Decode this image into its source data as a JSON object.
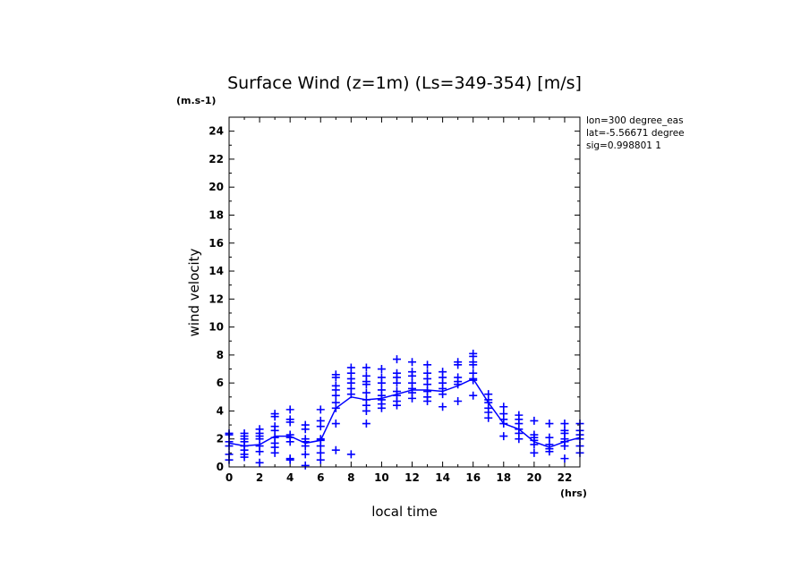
{
  "chart_data": {
    "type": "scatter",
    "title": "Surface Wind (z=1m) (Ls=349-354) [m/s]",
    "y_unit": "(m.s-1)",
    "x_unit": "(hrs)",
    "xlabel": "local time",
    "ylabel": "wind velocity",
    "xlim": [
      0,
      23
    ],
    "ylim": [
      0,
      25
    ],
    "x_ticks": [
      "0",
      "2",
      "4",
      "6",
      "8",
      "10",
      "12",
      "14",
      "16",
      "18",
      "20",
      "22"
    ],
    "y_ticks": [
      "0",
      "2",
      "4",
      "6",
      "8",
      "10",
      "12",
      "14",
      "16",
      "18",
      "20",
      "22",
      "24"
    ],
    "info_lines": [
      "lon=300 degree_eas",
      "lat=-5.56671 degree",
      "sig=0.998801 1"
    ],
    "color": "#0000ff",
    "grid": false,
    "series": [
      {
        "type": "scatter",
        "points": [
          [
            0,
            2.4
          ],
          [
            0,
            2.3
          ],
          [
            0,
            1.8
          ],
          [
            0,
            1.5
          ],
          [
            0,
            0.9
          ],
          [
            0,
            0.5
          ],
          [
            1,
            2.4
          ],
          [
            1,
            2.2
          ],
          [
            1,
            2.0
          ],
          [
            1,
            1.8
          ],
          [
            1,
            1.5
          ],
          [
            1,
            1.2
          ],
          [
            1,
            0.9
          ],
          [
            1,
            0.7
          ],
          [
            2,
            2.7
          ],
          [
            2,
            2.4
          ],
          [
            2,
            2.2
          ],
          [
            2,
            2.0
          ],
          [
            2,
            1.5
          ],
          [
            2,
            1.1
          ],
          [
            2,
            0.3
          ],
          [
            3,
            3.8
          ],
          [
            3,
            3.6
          ],
          [
            3,
            2.9
          ],
          [
            3,
            2.6
          ],
          [
            3,
            2.1
          ],
          [
            3,
            1.7
          ],
          [
            3,
            1.4
          ],
          [
            3,
            1.0
          ],
          [
            4,
            4.1
          ],
          [
            4,
            3.4
          ],
          [
            4,
            3.2
          ],
          [
            4,
            2.3
          ],
          [
            4,
            2.1
          ],
          [
            4,
            1.8
          ],
          [
            4,
            0.6
          ],
          [
            4,
            0.5
          ],
          [
            5,
            3.0
          ],
          [
            5,
            2.7
          ],
          [
            5,
            2.0
          ],
          [
            5,
            1.8
          ],
          [
            5,
            1.5
          ],
          [
            5,
            0.9
          ],
          [
            5,
            0.1
          ],
          [
            6,
            4.1
          ],
          [
            6,
            3.3
          ],
          [
            6,
            2.9
          ],
          [
            6,
            2.0
          ],
          [
            6,
            1.9
          ],
          [
            6,
            1.5
          ],
          [
            6,
            1.0
          ],
          [
            6,
            0.5
          ],
          [
            7,
            6.6
          ],
          [
            7,
            6.4
          ],
          [
            7,
            5.8
          ],
          [
            7,
            5.5
          ],
          [
            7,
            5.1
          ],
          [
            7,
            4.6
          ],
          [
            7,
            4.2
          ],
          [
            7,
            3.1
          ],
          [
            7,
            1.2
          ],
          [
            8,
            7.1
          ],
          [
            8,
            6.7
          ],
          [
            8,
            6.3
          ],
          [
            8,
            6.0
          ],
          [
            8,
            5.6
          ],
          [
            8,
            5.2
          ],
          [
            8,
            0.9
          ],
          [
            9,
            7.1
          ],
          [
            9,
            6.5
          ],
          [
            9,
            6.1
          ],
          [
            9,
            5.9
          ],
          [
            9,
            5.3
          ],
          [
            9,
            4.8
          ],
          [
            9,
            4.4
          ],
          [
            9,
            4.0
          ],
          [
            9,
            3.1
          ],
          [
            10,
            7.0
          ],
          [
            10,
            6.4
          ],
          [
            10,
            6.0
          ],
          [
            10,
            5.5
          ],
          [
            10,
            5.1
          ],
          [
            10,
            4.8
          ],
          [
            10,
            4.5
          ],
          [
            10,
            4.2
          ],
          [
            11,
            7.7
          ],
          [
            11,
            6.7
          ],
          [
            11,
            6.4
          ],
          [
            11,
            6.0
          ],
          [
            11,
            5.4
          ],
          [
            11,
            5.1
          ],
          [
            11,
            4.7
          ],
          [
            11,
            4.4
          ],
          [
            12,
            7.5
          ],
          [
            12,
            6.8
          ],
          [
            12,
            6.5
          ],
          [
            12,
            6.0
          ],
          [
            12,
            5.6
          ],
          [
            12,
            5.3
          ],
          [
            12,
            4.9
          ],
          [
            13,
            7.3
          ],
          [
            13,
            6.7
          ],
          [
            13,
            6.3
          ],
          [
            13,
            5.9
          ],
          [
            13,
            5.4
          ],
          [
            13,
            5.0
          ],
          [
            13,
            4.7
          ],
          [
            14,
            6.8
          ],
          [
            14,
            6.4
          ],
          [
            14,
            6.0
          ],
          [
            14,
            5.6
          ],
          [
            14,
            5.2
          ],
          [
            14,
            4.3
          ],
          [
            15,
            7.5
          ],
          [
            15,
            7.3
          ],
          [
            15,
            6.4
          ],
          [
            15,
            6.1
          ],
          [
            15,
            5.9
          ],
          [
            15,
            4.7
          ],
          [
            16,
            8.1
          ],
          [
            16,
            7.9
          ],
          [
            16,
            7.5
          ],
          [
            16,
            7.3
          ],
          [
            16,
            6.7
          ],
          [
            16,
            6.3
          ],
          [
            16,
            6.2
          ],
          [
            16,
            5.1
          ],
          [
            17,
            5.2
          ],
          [
            17,
            4.8
          ],
          [
            17,
            4.6
          ],
          [
            17,
            4.2
          ],
          [
            17,
            3.9
          ],
          [
            17,
            3.5
          ],
          [
            18,
            4.3
          ],
          [
            18,
            3.8
          ],
          [
            18,
            3.4
          ],
          [
            18,
            3.1
          ],
          [
            18,
            2.2
          ],
          [
            19,
            3.7
          ],
          [
            19,
            3.4
          ],
          [
            19,
            3.1
          ],
          [
            19,
            2.7
          ],
          [
            19,
            2.4
          ],
          [
            19,
            2.0
          ],
          [
            20,
            3.3
          ],
          [
            20,
            2.3
          ],
          [
            20,
            2.1
          ],
          [
            20,
            1.9
          ],
          [
            20,
            1.6
          ],
          [
            20,
            1.0
          ],
          [
            21,
            3.1
          ],
          [
            21,
            2.1
          ],
          [
            21,
            1.6
          ],
          [
            21,
            1.3
          ],
          [
            21,
            1.1
          ],
          [
            22,
            3.1
          ],
          [
            22,
            2.6
          ],
          [
            22,
            2.4
          ],
          [
            22,
            2.0
          ],
          [
            22,
            1.8
          ],
          [
            22,
            1.5
          ],
          [
            22,
            0.6
          ],
          [
            23,
            3.1
          ],
          [
            23,
            2.6
          ],
          [
            23,
            2.3
          ],
          [
            23,
            2.0
          ],
          [
            23,
            1.5
          ],
          [
            23,
            1.0
          ]
        ]
      },
      {
        "type": "line",
        "x": [
          0,
          1,
          2,
          3,
          4,
          5,
          6,
          7,
          8,
          9,
          10,
          11,
          12,
          13,
          14,
          15,
          16,
          17,
          18,
          19,
          20,
          21,
          22,
          23
        ],
        "y": [
          1.7,
          1.5,
          1.6,
          2.2,
          2.2,
          1.7,
          1.9,
          4.2,
          5.0,
          4.8,
          4.9,
          5.2,
          5.5,
          5.5,
          5.4,
          5.8,
          6.3,
          4.6,
          3.1,
          2.7,
          1.8,
          1.4,
          1.8,
          2.1
        ]
      }
    ]
  }
}
